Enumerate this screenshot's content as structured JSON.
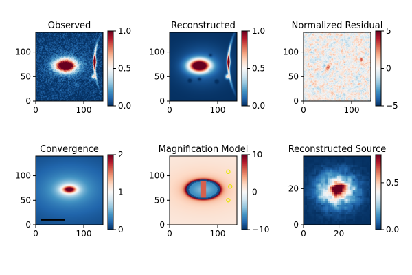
{
  "figure": {
    "panels": [
      {
        "id": "observed",
        "title": "Observed",
        "kind": "lens_image"
      },
      {
        "id": "reconstructed",
        "title": "Reconstructed",
        "kind": "lens_image"
      },
      {
        "id": "residual",
        "title": "Normalized Residual",
        "kind": "residual"
      },
      {
        "id": "convergence",
        "title": "Convergence",
        "kind": "convergence"
      },
      {
        "id": "magnification",
        "title": "Magnification Model",
        "kind": "magnification"
      },
      {
        "id": "source",
        "title": "Reconstructed Source",
        "kind": "source"
      }
    ]
  },
  "chart_data": [
    {
      "type": "heatmap",
      "title": "Observed",
      "colormap": "RdBu_r",
      "x_ticks": [
        0,
        100
      ],
      "y_ticks": [
        0,
        50,
        100
      ],
      "xlim": [
        0,
        140
      ],
      "ylim": [
        0,
        140
      ],
      "colorbar": {
        "range": [
          0.0,
          1.0
        ],
        "ticks": [
          "0.0",
          "0.5",
          "1.0"
        ]
      }
    },
    {
      "type": "heatmap",
      "title": "Reconstructed",
      "colormap": "RdBu_r",
      "x_ticks": [
        0,
        100
      ],
      "y_ticks": [
        0,
        50,
        100
      ],
      "xlim": [
        0,
        140
      ],
      "ylim": [
        0,
        140
      ],
      "colorbar": {
        "range": [
          0.0,
          1.0
        ],
        "ticks": [
          "0.0",
          "0.5",
          "1.0"
        ]
      }
    },
    {
      "type": "heatmap",
      "title": "Normalized Residual",
      "colormap": "RdBu_r",
      "x_ticks": [
        0,
        100
      ],
      "y_ticks": [
        0,
        50,
        100
      ],
      "xlim": [
        0,
        140
      ],
      "ylim": [
        0,
        140
      ],
      "colorbar": {
        "range": [
          -5,
          5
        ],
        "ticks": [
          "−5",
          "0",
          "5"
        ]
      }
    },
    {
      "type": "heatmap",
      "title": "Convergence",
      "colormap": "RdBu_r",
      "x_ticks": [
        0,
        100
      ],
      "y_ticks": [
        0,
        50,
        100
      ],
      "xlim": [
        0,
        140
      ],
      "ylim": [
        0,
        140
      ],
      "colorbar": {
        "range": [
          0,
          2
        ],
        "ticks": [
          "0",
          "1",
          "2"
        ]
      },
      "scale_bar": {
        "x": [
          10,
          60
        ],
        "y": 10
      }
    },
    {
      "type": "heatmap",
      "title": "Magnification Model",
      "colormap": "RdBu_r",
      "x_ticks": [
        0,
        100
      ],
      "y_ticks": [
        0,
        50,
        100
      ],
      "xlim": [
        0,
        140
      ],
      "ylim": [
        0,
        140
      ],
      "colorbar": {
        "range": [
          -10,
          10
        ],
        "ticks": [
          "−10",
          "0",
          "10"
        ]
      },
      "image_positions": [
        {
          "x": 122,
          "y": 108
        },
        {
          "x": 126,
          "y": 78
        },
        {
          "x": 122,
          "y": 50
        }
      ]
    },
    {
      "type": "heatmap",
      "title": "Reconstructed Source",
      "colormap": "RdBu_r",
      "x_ticks": [
        0,
        20
      ],
      "y_ticks": [
        0,
        20
      ],
      "xlim": [
        0,
        38
      ],
      "ylim": [
        0,
        38
      ],
      "colorbar": {
        "range": [
          0.0,
          0.8
        ],
        "ticks": [
          "0.0",
          "0.5"
        ]
      }
    }
  ]
}
